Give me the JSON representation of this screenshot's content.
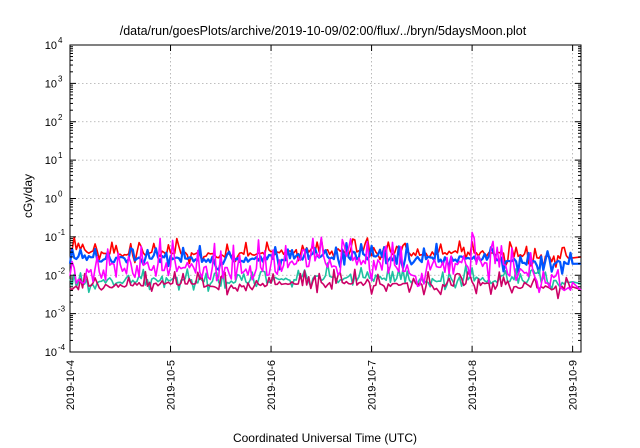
{
  "chart_data": {
    "type": "line",
    "title": "/data/run/goesPlots/archive/2019-10-09/02:00/flux/../bryn/5daysMoon.plot",
    "xlabel": "Coordinated Universal Time (UTC)",
    "ylabel": "cGy/day",
    "y_scale": "log",
    "ylim": [
      0.0001,
      10000
    ],
    "y_ticks": [
      {
        "base": "10",
        "exp": "-4",
        "value": 0.0001
      },
      {
        "base": "10",
        "exp": "-3",
        "value": 0.001
      },
      {
        "base": "10",
        "exp": "-2",
        "value": 0.01
      },
      {
        "base": "10",
        "exp": "-1",
        "value": 0.1
      },
      {
        "base": "10",
        "exp": "0",
        "value": 1
      },
      {
        "base": "10",
        "exp": "1",
        "value": 10
      },
      {
        "base": "10",
        "exp": "2",
        "value": 100
      },
      {
        "base": "10",
        "exp": "3",
        "value": 1000
      },
      {
        "base": "10",
        "exp": "4",
        "value": 10000
      }
    ],
    "xlim": [
      "2019-10-04",
      "2019-10-09 02:00"
    ],
    "x_ticks": [
      "2019-10-4",
      "2019-10-5",
      "2019-10-6",
      "2019-10-7",
      "2019-10-8",
      "2019-10-9"
    ],
    "grid": true,
    "legend": "none",
    "series": [
      {
        "color": "#ff0000",
        "x_days": [
          0,
          0.5,
          1,
          1.5,
          2,
          2.5,
          3,
          3.5,
          4,
          4.5,
          5,
          5.08
        ],
        "values": [
          0.045,
          0.035,
          0.04,
          0.032,
          0.038,
          0.045,
          0.04,
          0.035,
          0.04,
          0.033,
          0.028,
          0.03
        ]
      },
      {
        "color": "#0055ff",
        "x_days": [
          0,
          0.5,
          1,
          1.5,
          2,
          2.5,
          3,
          3.5,
          4,
          4.5,
          5,
          5.08
        ],
        "values": [
          0.03,
          0.025,
          0.028,
          0.024,
          0.028,
          0.032,
          0.029,
          0.026,
          0.028,
          0.024,
          0.02,
          0.02
        ]
      },
      {
        "color": "#20c0a0",
        "x_days": [
          0,
          0.5,
          1,
          1.5,
          2,
          2.5,
          3,
          3.5,
          4,
          4.5,
          5,
          5.08
        ],
        "values": [
          0.006,
          0.007,
          0.008,
          0.006,
          0.007,
          0.009,
          0.008,
          0.007,
          0.008,
          0.007,
          0.006,
          0.006
        ]
      },
      {
        "color": "#cc0066",
        "x_days": [
          0,
          0.5,
          1,
          1.5,
          2,
          2.5,
          3,
          3.5,
          4,
          4.5,
          5,
          5.08
        ],
        "values": [
          0.0045,
          0.0055,
          0.006,
          0.005,
          0.0055,
          0.0065,
          0.006,
          0.0055,
          0.006,
          0.005,
          0.0045,
          0.0042
        ]
      },
      {
        "color": "#ff00ff",
        "x_days": [
          0,
          0.5,
          1,
          1.5,
          2,
          2.5,
          3,
          3.5,
          4,
          4.5,
          5,
          5.08
        ],
        "values": [
          0.008,
          0.015,
          0.02,
          0.01,
          0.015,
          0.025,
          0.018,
          0.012,
          0.02,
          0.012,
          0.005,
          0.004
        ]
      }
    ]
  }
}
